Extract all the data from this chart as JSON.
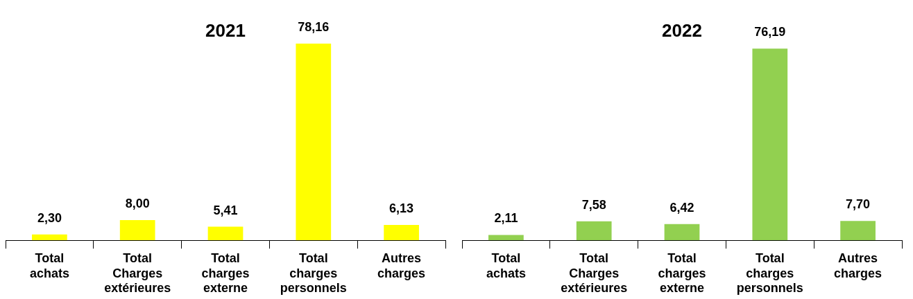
{
  "chart_data": [
    {
      "type": "bar",
      "title": "2021",
      "categories": [
        "Total achats",
        "Total Charges extérieures",
        "Total charges externe",
        "Total charges personnels",
        "Autres charges"
      ],
      "values": [
        2.3,
        8.0,
        5.41,
        78.16,
        6.13
      ],
      "color": "#ffff00",
      "data_labels": true,
      "value_labels": [
        "2,30",
        "8,00",
        "5,41",
        "78,16",
        "6,13"
      ],
      "legend": false,
      "grid": false
    },
    {
      "type": "bar",
      "title": "2022",
      "categories": [
        "Total achats",
        "Total Charges extérieures",
        "Total charges externe",
        "Total charges personnels",
        "Autres charges"
      ],
      "values": [
        2.11,
        7.58,
        6.42,
        76.19,
        7.7
      ],
      "color": "#92d050",
      "data_labels": true,
      "value_labels": [
        "2,11",
        "7,58",
        "6,42",
        "76,19",
        "7,70"
      ],
      "legend": false,
      "grid": false
    }
  ]
}
